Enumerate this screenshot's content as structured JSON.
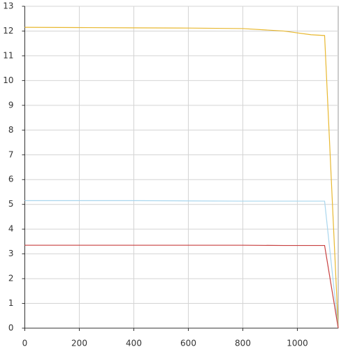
{
  "chart_data": {
    "type": "line",
    "x": [
      0,
      200,
      400,
      600,
      800,
      950,
      1050,
      1100,
      1150
    ],
    "series": [
      {
        "color": "#e8b830",
        "values": [
          12.15,
          12.14,
          12.13,
          12.12,
          12.1,
          12.0,
          11.85,
          11.82,
          0
        ]
      },
      {
        "color": "#a9d6ee",
        "values": [
          5.15,
          5.15,
          5.15,
          5.14,
          5.13,
          5.13,
          5.13,
          5.13,
          0
        ]
      },
      {
        "color": "#c84040",
        "values": [
          3.35,
          3.35,
          3.35,
          3.35,
          3.35,
          3.34,
          3.34,
          3.34,
          0
        ]
      }
    ],
    "xlim": [
      0,
      1150
    ],
    "xticks": [
      0,
      200,
      400,
      600,
      800,
      1000
    ],
    "ylim": [
      0,
      13
    ],
    "yticks": [
      0,
      1,
      2,
      3,
      4,
      5,
      6,
      7,
      8,
      9,
      10,
      11,
      12,
      13
    ],
    "grid": true
  }
}
